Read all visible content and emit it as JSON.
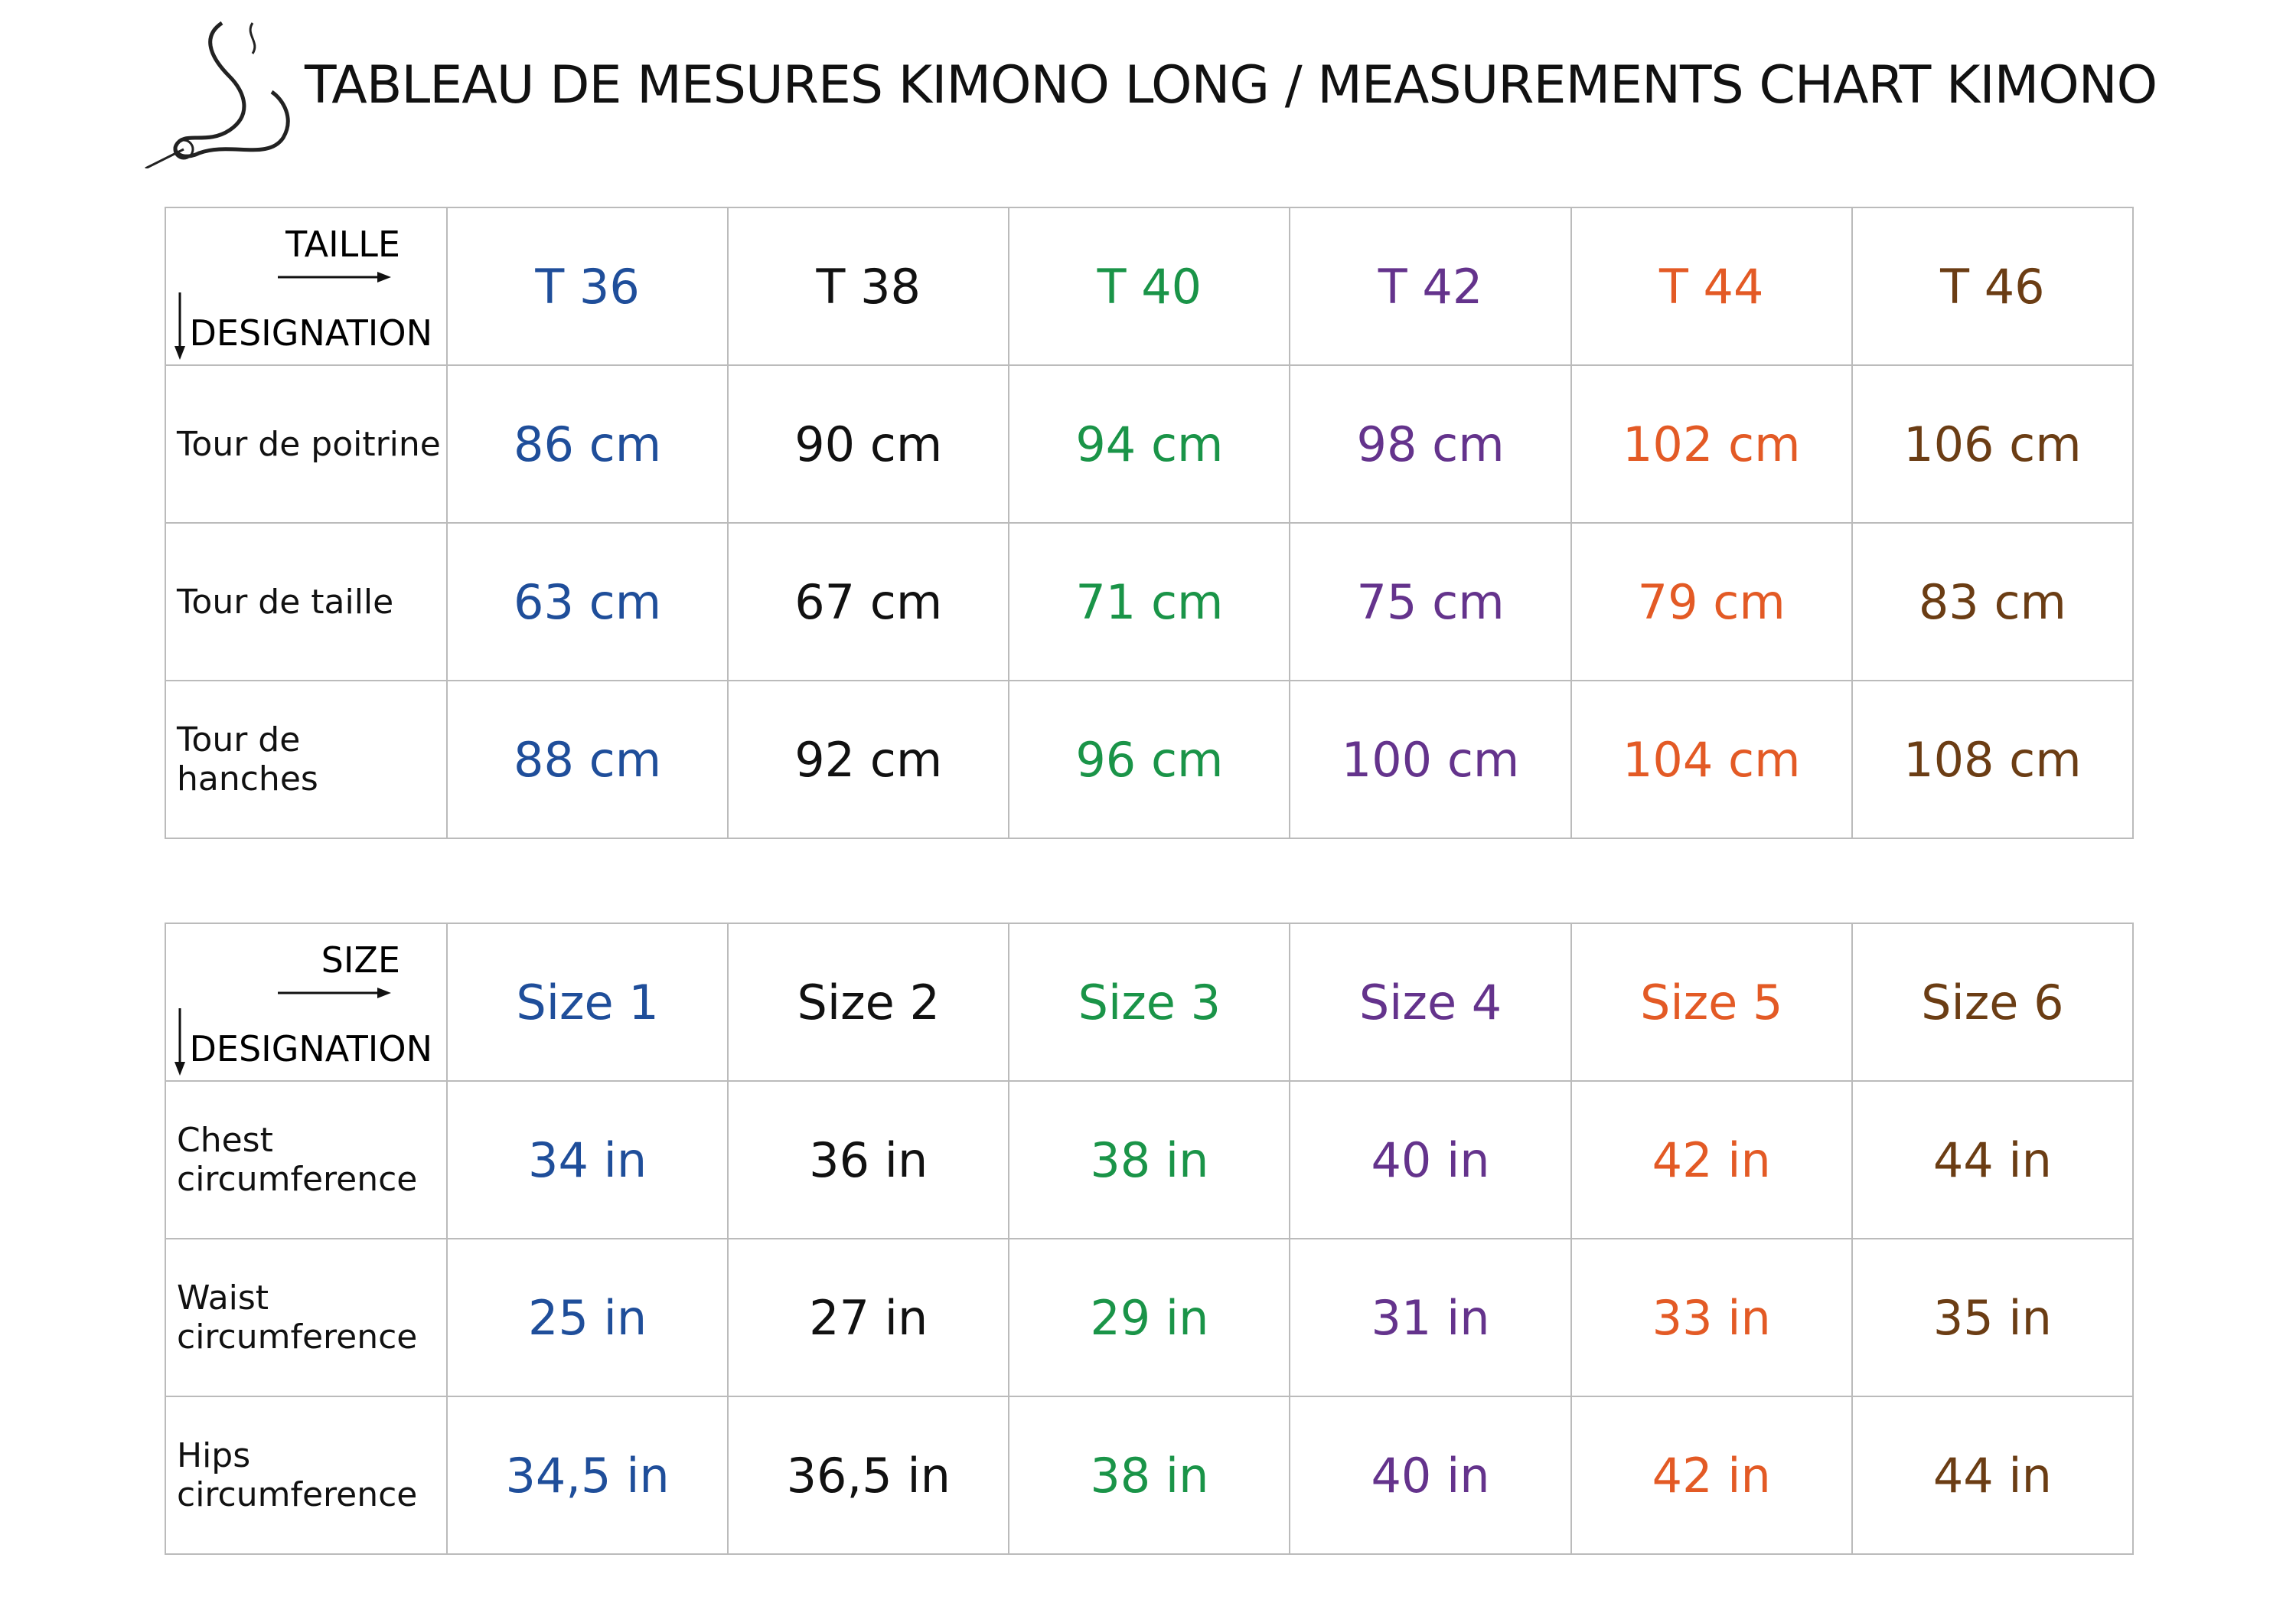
{
  "header": {
    "title": "TABLEAU DE MESURES KIMONO LONG / MEASUREMENTS CHART KIMONO"
  },
  "tables": [
    {
      "corner": {
        "top": "TAILLE",
        "bottom": "DESIGNATION"
      },
      "columns": [
        "T 36",
        "T 38",
        "T 40",
        "T 42",
        "T 44",
        "T 46"
      ],
      "rows": [
        {
          "label": "Tour de poitrine",
          "values": [
            "86 cm",
            "90 cm",
            "94 cm",
            "98 cm",
            "102 cm",
            "106 cm"
          ]
        },
        {
          "label": "Tour de taille",
          "values": [
            "63 cm",
            "67 cm",
            "71 cm",
            "75 cm",
            "79 cm",
            "83 cm"
          ]
        },
        {
          "label": "Tour de hanches",
          "values": [
            "88 cm",
            "92 cm",
            "96 cm",
            "100 cm",
            "104 cm",
            "108 cm"
          ]
        }
      ]
    },
    {
      "corner": {
        "top": "SIZE",
        "bottom": "DESIGNATION"
      },
      "columns": [
        "Size 1",
        "Size 2",
        "Size 3",
        "Size 4",
        "Size 5",
        "Size 6"
      ],
      "rows": [
        {
          "label": "Chest circumference",
          "values": [
            "34 in",
            "36 in",
            "38 in",
            "40 in",
            "42 in",
            "44 in"
          ]
        },
        {
          "label": "Waist circumference",
          "values": [
            "25 in",
            "27 in",
            "29 in",
            "31 in",
            "33 in",
            "35 in"
          ]
        },
        {
          "label": "Hips circumference",
          "values": [
            "34,5 in",
            "36,5 in",
            "38 in",
            "40 in",
            "42 in",
            "44 in"
          ]
        }
      ]
    }
  ]
}
